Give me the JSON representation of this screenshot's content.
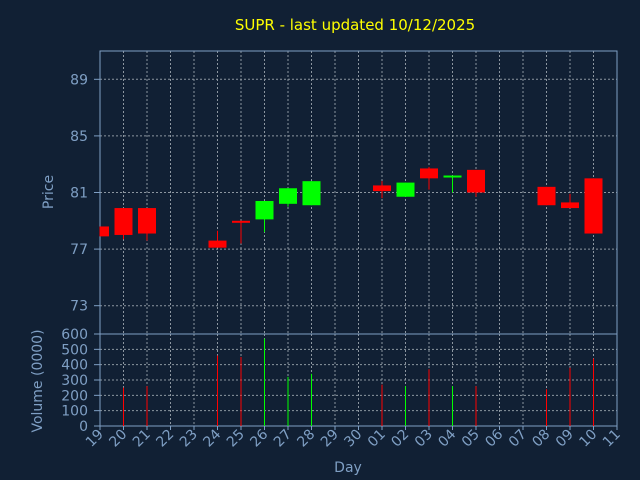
{
  "title": "SUPR - last updated 10/12/2025",
  "colors": {
    "background": "#112034",
    "grid": "#8c96a0",
    "frame": "#7f9fc4",
    "up": "#00ff00",
    "down": "#ff0000",
    "title": "#ffff00",
    "text": "#7f9fc4"
  },
  "chart_data": {
    "type": "candlestick",
    "price_axis": {
      "label": "Price",
      "ylim": [
        71,
        91
      ],
      "ticks": [
        73,
        77,
        81,
        85,
        89
      ]
    },
    "volume_axis": {
      "label": "Volume (0000)",
      "ylim": [
        0,
        600
      ],
      "ticks": [
        0,
        100,
        200,
        300,
        400,
        500,
        600
      ]
    },
    "xlabel": "Day",
    "x_tick_labels": [
      "19",
      "20",
      "21",
      "22",
      "23",
      "24",
      "25",
      "26",
      "27",
      "28",
      "29",
      "30",
      "01",
      "02",
      "03",
      "04",
      "05",
      "06",
      "07",
      "08",
      "09",
      "10",
      "11"
    ],
    "candles": [
      {
        "day": "19",
        "open": 78.6,
        "close": 77.9,
        "high": 78.6,
        "low": 77.9,
        "volume": 0
      },
      {
        "day": "20",
        "open": 79.9,
        "close": 78.0,
        "high": 79.9,
        "low": 77.7,
        "volume": 250
      },
      {
        "day": "21",
        "open": 79.9,
        "close": 78.1,
        "high": 79.9,
        "low": 77.6,
        "volume": 260
      },
      {
        "day": "24",
        "open": 77.6,
        "close": 77.1,
        "high": 78.3,
        "low": 77.1,
        "volume": 460
      },
      {
        "day": "25",
        "open": 79.0,
        "close": 78.9,
        "high": 79.0,
        "low": 77.4,
        "volume": 450
      },
      {
        "day": "26",
        "open": 79.1,
        "close": 80.4,
        "high": 80.4,
        "low": 78.2,
        "volume": 570
      },
      {
        "day": "27",
        "open": 80.2,
        "close": 81.3,
        "high": 81.3,
        "low": 80.0,
        "volume": 320
      },
      {
        "day": "28",
        "open": 80.1,
        "close": 81.8,
        "high": 81.8,
        "low": 80.1,
        "volume": 340
      },
      {
        "day": "01",
        "open": 81.5,
        "close": 81.1,
        "high": 81.8,
        "low": 80.6,
        "volume": 270
      },
      {
        "day": "02",
        "open": 80.7,
        "close": 81.7,
        "high": 81.7,
        "low": 80.7,
        "volume": 260
      },
      {
        "day": "03",
        "open": 82.7,
        "close": 82.0,
        "high": 82.8,
        "low": 81.2,
        "volume": 370
      },
      {
        "day": "04",
        "open": 82.1,
        "close": 82.2,
        "high": 82.2,
        "low": 81.0,
        "volume": 260
      },
      {
        "day": "05",
        "open": 82.6,
        "close": 81.0,
        "high": 82.6,
        "low": 80.7,
        "volume": 260
      },
      {
        "day": "08",
        "open": 81.4,
        "close": 80.1,
        "high": 81.4,
        "low": 80.1,
        "volume": 240
      },
      {
        "day": "09",
        "open": 80.3,
        "close": 79.9,
        "high": 80.9,
        "low": 79.9,
        "volume": 380
      },
      {
        "day": "10",
        "open": 82.0,
        "close": 78.1,
        "high": 82.0,
        "low": 78.1,
        "volume": 440
      }
    ]
  }
}
